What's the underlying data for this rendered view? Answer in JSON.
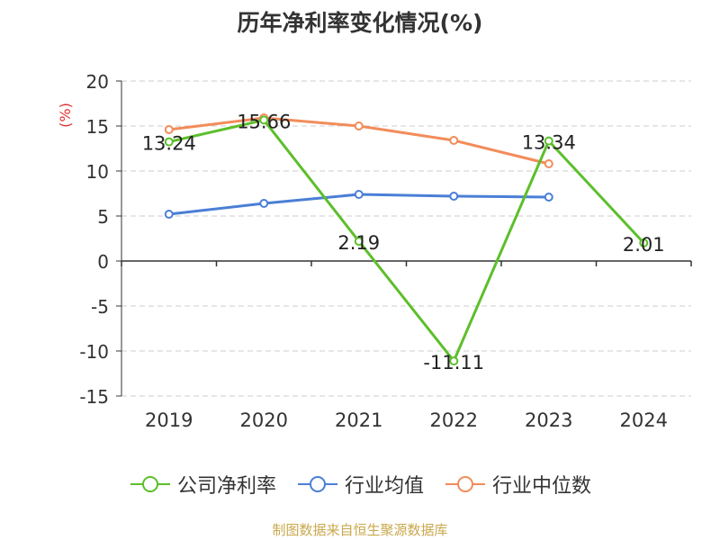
{
  "chart_data": {
    "type": "line",
    "title": "历年净利率变化情况(%)",
    "ylabel": "(%)",
    "categories": [
      "2019",
      "2020",
      "2021",
      "2022",
      "2023",
      "2024"
    ],
    "ylim": [
      -15,
      20
    ],
    "yticks": [
      20,
      15,
      10,
      5,
      0,
      -5,
      -10,
      -15
    ],
    "grid": true,
    "legend_position": "bottom",
    "series": [
      {
        "name": "公司净利率",
        "color": "#5cbf2a",
        "values": [
          13.24,
          15.66,
          2.19,
          -11.11,
          13.34,
          2.01
        ],
        "labels": [
          "13.24",
          "15.66",
          "2.19",
          "-11.11",
          "13.34",
          "2.01"
        ]
      },
      {
        "name": "行业均值",
        "color": "#4a7fd6",
        "values": [
          5.2,
          6.4,
          7.4,
          7.2,
          7.1,
          null
        ]
      },
      {
        "name": "行业中位数",
        "color": "#f28c5a",
        "values": [
          14.6,
          15.9,
          15.0,
          13.4,
          10.8,
          null
        ]
      }
    ]
  },
  "footer": {
    "source": "制图数据来自恒生聚源数据库"
  }
}
